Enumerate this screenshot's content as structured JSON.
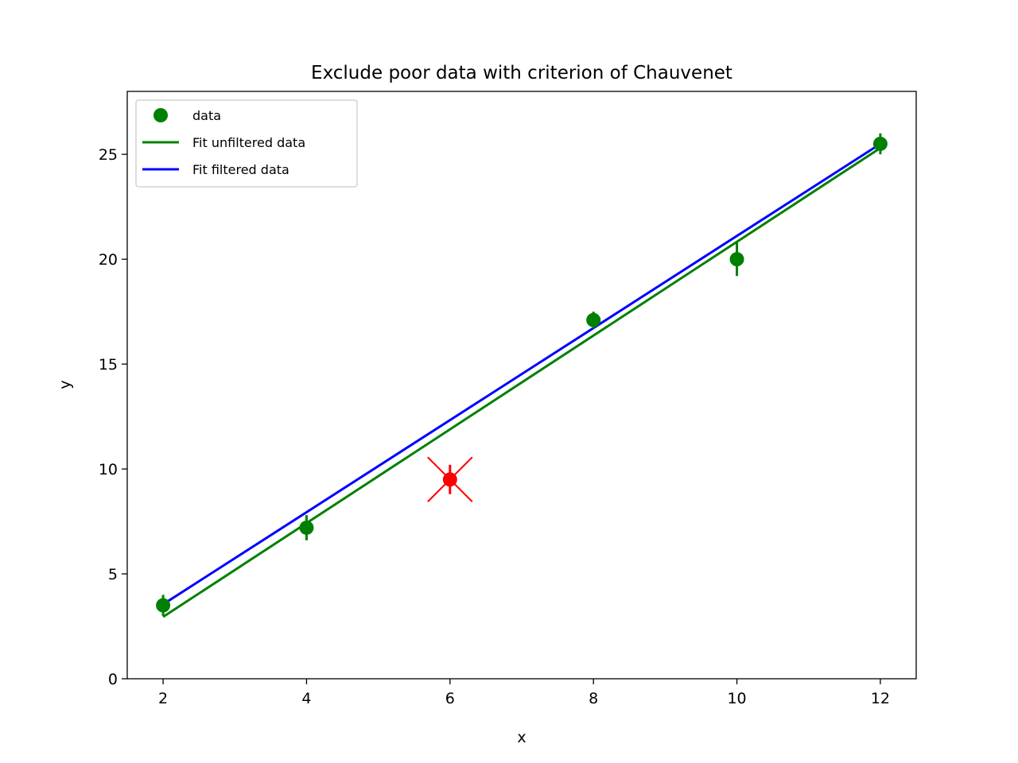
{
  "chart_data": {
    "type": "scatter",
    "title": "Exclude poor data with criterion of Chauvenet",
    "xlabel": "x",
    "ylabel": "y",
    "xlim": [
      1.5,
      12.5
    ],
    "ylim": [
      0,
      28
    ],
    "xticks": [
      2,
      4,
      6,
      8,
      10,
      12
    ],
    "yticks": [
      0,
      5,
      10,
      15,
      20,
      25
    ],
    "grid": false,
    "legend_position": "top-left",
    "legend": [
      {
        "label": "data",
        "kind": "marker",
        "color": "#008000"
      },
      {
        "label": "Fit unfiltered data",
        "kind": "line",
        "color": "#008000"
      },
      {
        "label": "Fit filtered data",
        "kind": "line",
        "color": "#0000ff"
      }
    ],
    "points": [
      {
        "x": 2,
        "y": 3.5,
        "yerr": 0.5,
        "excluded": false
      },
      {
        "x": 4,
        "y": 7.2,
        "yerr": 0.6,
        "excluded": false
      },
      {
        "x": 6,
        "y": 9.5,
        "yerr": 0.7,
        "excluded": true
      },
      {
        "x": 8,
        "y": 17.1,
        "yerr": 0.4,
        "excluded": false
      },
      {
        "x": 10,
        "y": 20.0,
        "yerr": 0.8,
        "excluded": false
      },
      {
        "x": 12,
        "y": 25.5,
        "yerr": 0.5,
        "excluded": false
      }
    ],
    "series": [
      {
        "name": "Fit unfiltered data",
        "color": "#008000",
        "x": [
          2,
          12
        ],
        "y": [
          2.95,
          25.3
        ]
      },
      {
        "name": "Fit filtered data",
        "color": "#0000ff",
        "x": [
          2,
          12
        ],
        "y": [
          3.55,
          25.5
        ]
      }
    ],
    "colors": {
      "data": "#008000",
      "excluded": "#ff0000"
    }
  }
}
